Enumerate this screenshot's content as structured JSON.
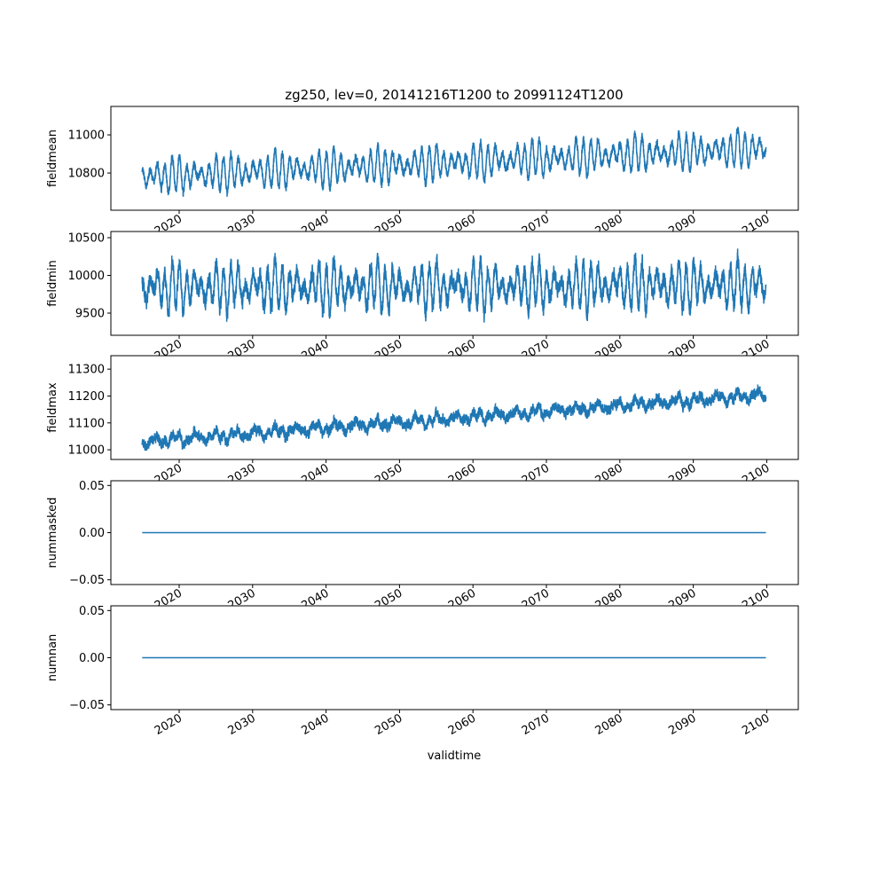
{
  "chart_data": {
    "type": "line",
    "title": "zg250, lev=0, 20141216T1200 to 20991124T1200",
    "xlabel": "validtime",
    "x_range": [
      2014.96,
      2099.9
    ],
    "xlim": [
      2010.7,
      2104.3
    ],
    "x_ticks": [
      2020,
      2030,
      2040,
      2050,
      2060,
      2070,
      2080,
      2090,
      2100
    ],
    "x_tick_labels": [
      "2020",
      "2030",
      "2040",
      "2050",
      "2060",
      "2070",
      "2080",
      "2090",
      "2100"
    ],
    "color": "#1f77b4",
    "panels": [
      {
        "ylabel": "fieldmean",
        "ylim": [
          10605,
          11149
        ],
        "y_ticks": [
          10800,
          11000
        ],
        "y_tick_labels": [
          "10800",
          "11000"
        ],
        "model": {
          "start_level": 10780,
          "end_level": 10930,
          "seasonal_amplitude": 80,
          "noise": 25
        }
      },
      {
        "ylabel": "fieldmin",
        "ylim": [
          9206,
          10582
        ],
        "y_ticks": [
          9500,
          10000,
          10500
        ],
        "y_tick_labels": [
          "9500",
          "10000",
          "10500"
        ],
        "model": {
          "start_level": 9840,
          "end_level": 9870,
          "seasonal_amplitude": 260,
          "noise": 120
        }
      },
      {
        "ylabel": "fieldmax",
        "ylim": [
          10964,
          11350
        ],
        "y_ticks": [
          11000,
          11100,
          11200,
          11300
        ],
        "y_tick_labels": [
          "11000",
          "11100",
          "11200",
          "11300"
        ],
        "model": {
          "start_level": 11030,
          "end_level": 11205,
          "seasonal_amplitude": 12,
          "noise": 22
        }
      },
      {
        "ylabel": "nummasked",
        "ylim": [
          -0.055,
          0.055
        ],
        "y_ticks": [
          -0.05,
          0.0,
          0.05
        ],
        "y_tick_labels": [
          "−0.05",
          "0.00",
          "0.05"
        ],
        "model": {
          "start_level": 0,
          "end_level": 0,
          "seasonal_amplitude": 0,
          "noise": 0
        }
      },
      {
        "ylabel": "numnan",
        "ylim": [
          -0.055,
          0.055
        ],
        "y_ticks": [
          -0.05,
          0.0,
          0.05
        ],
        "y_tick_labels": [
          "−0.05",
          "0.00",
          "0.05"
        ],
        "model": {
          "start_level": 0,
          "end_level": 0,
          "seasonal_amplitude": 0,
          "noise": 0
        }
      }
    ]
  }
}
